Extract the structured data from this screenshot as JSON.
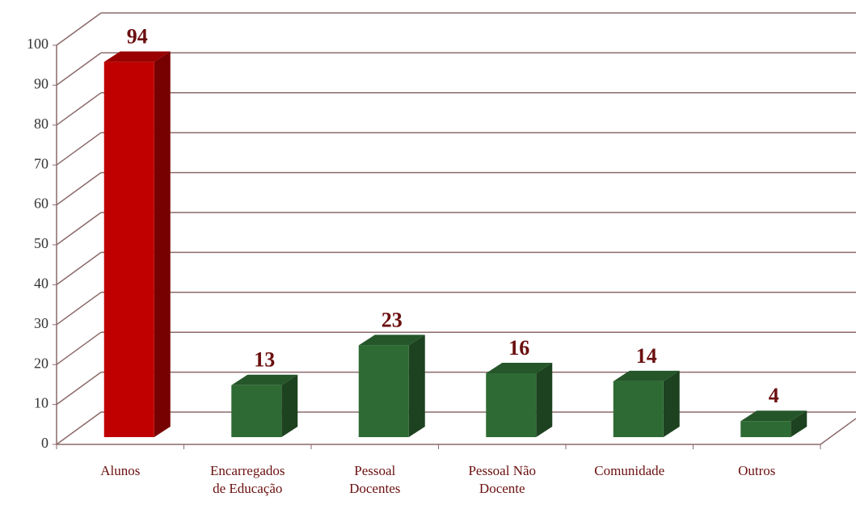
{
  "chart_data": {
    "type": "bar3d",
    "categories": [
      "Alunos",
      "Encarregados de Educação",
      "Pessoal Docentes",
      "Pessoal Não Docente",
      "Comunidade",
      "Outros"
    ],
    "values": [
      94,
      13,
      23,
      16,
      14,
      4
    ],
    "colors": [
      "#c00000",
      "#2e6b34",
      "#2e6b34",
      "#2e6b34",
      "#2e6b34",
      "#2e6b34"
    ],
    "ylim": [
      0,
      100
    ],
    "yticks": [
      0,
      10,
      20,
      30,
      40,
      50,
      60,
      70,
      80,
      90,
      100
    ],
    "grid": true
  }
}
